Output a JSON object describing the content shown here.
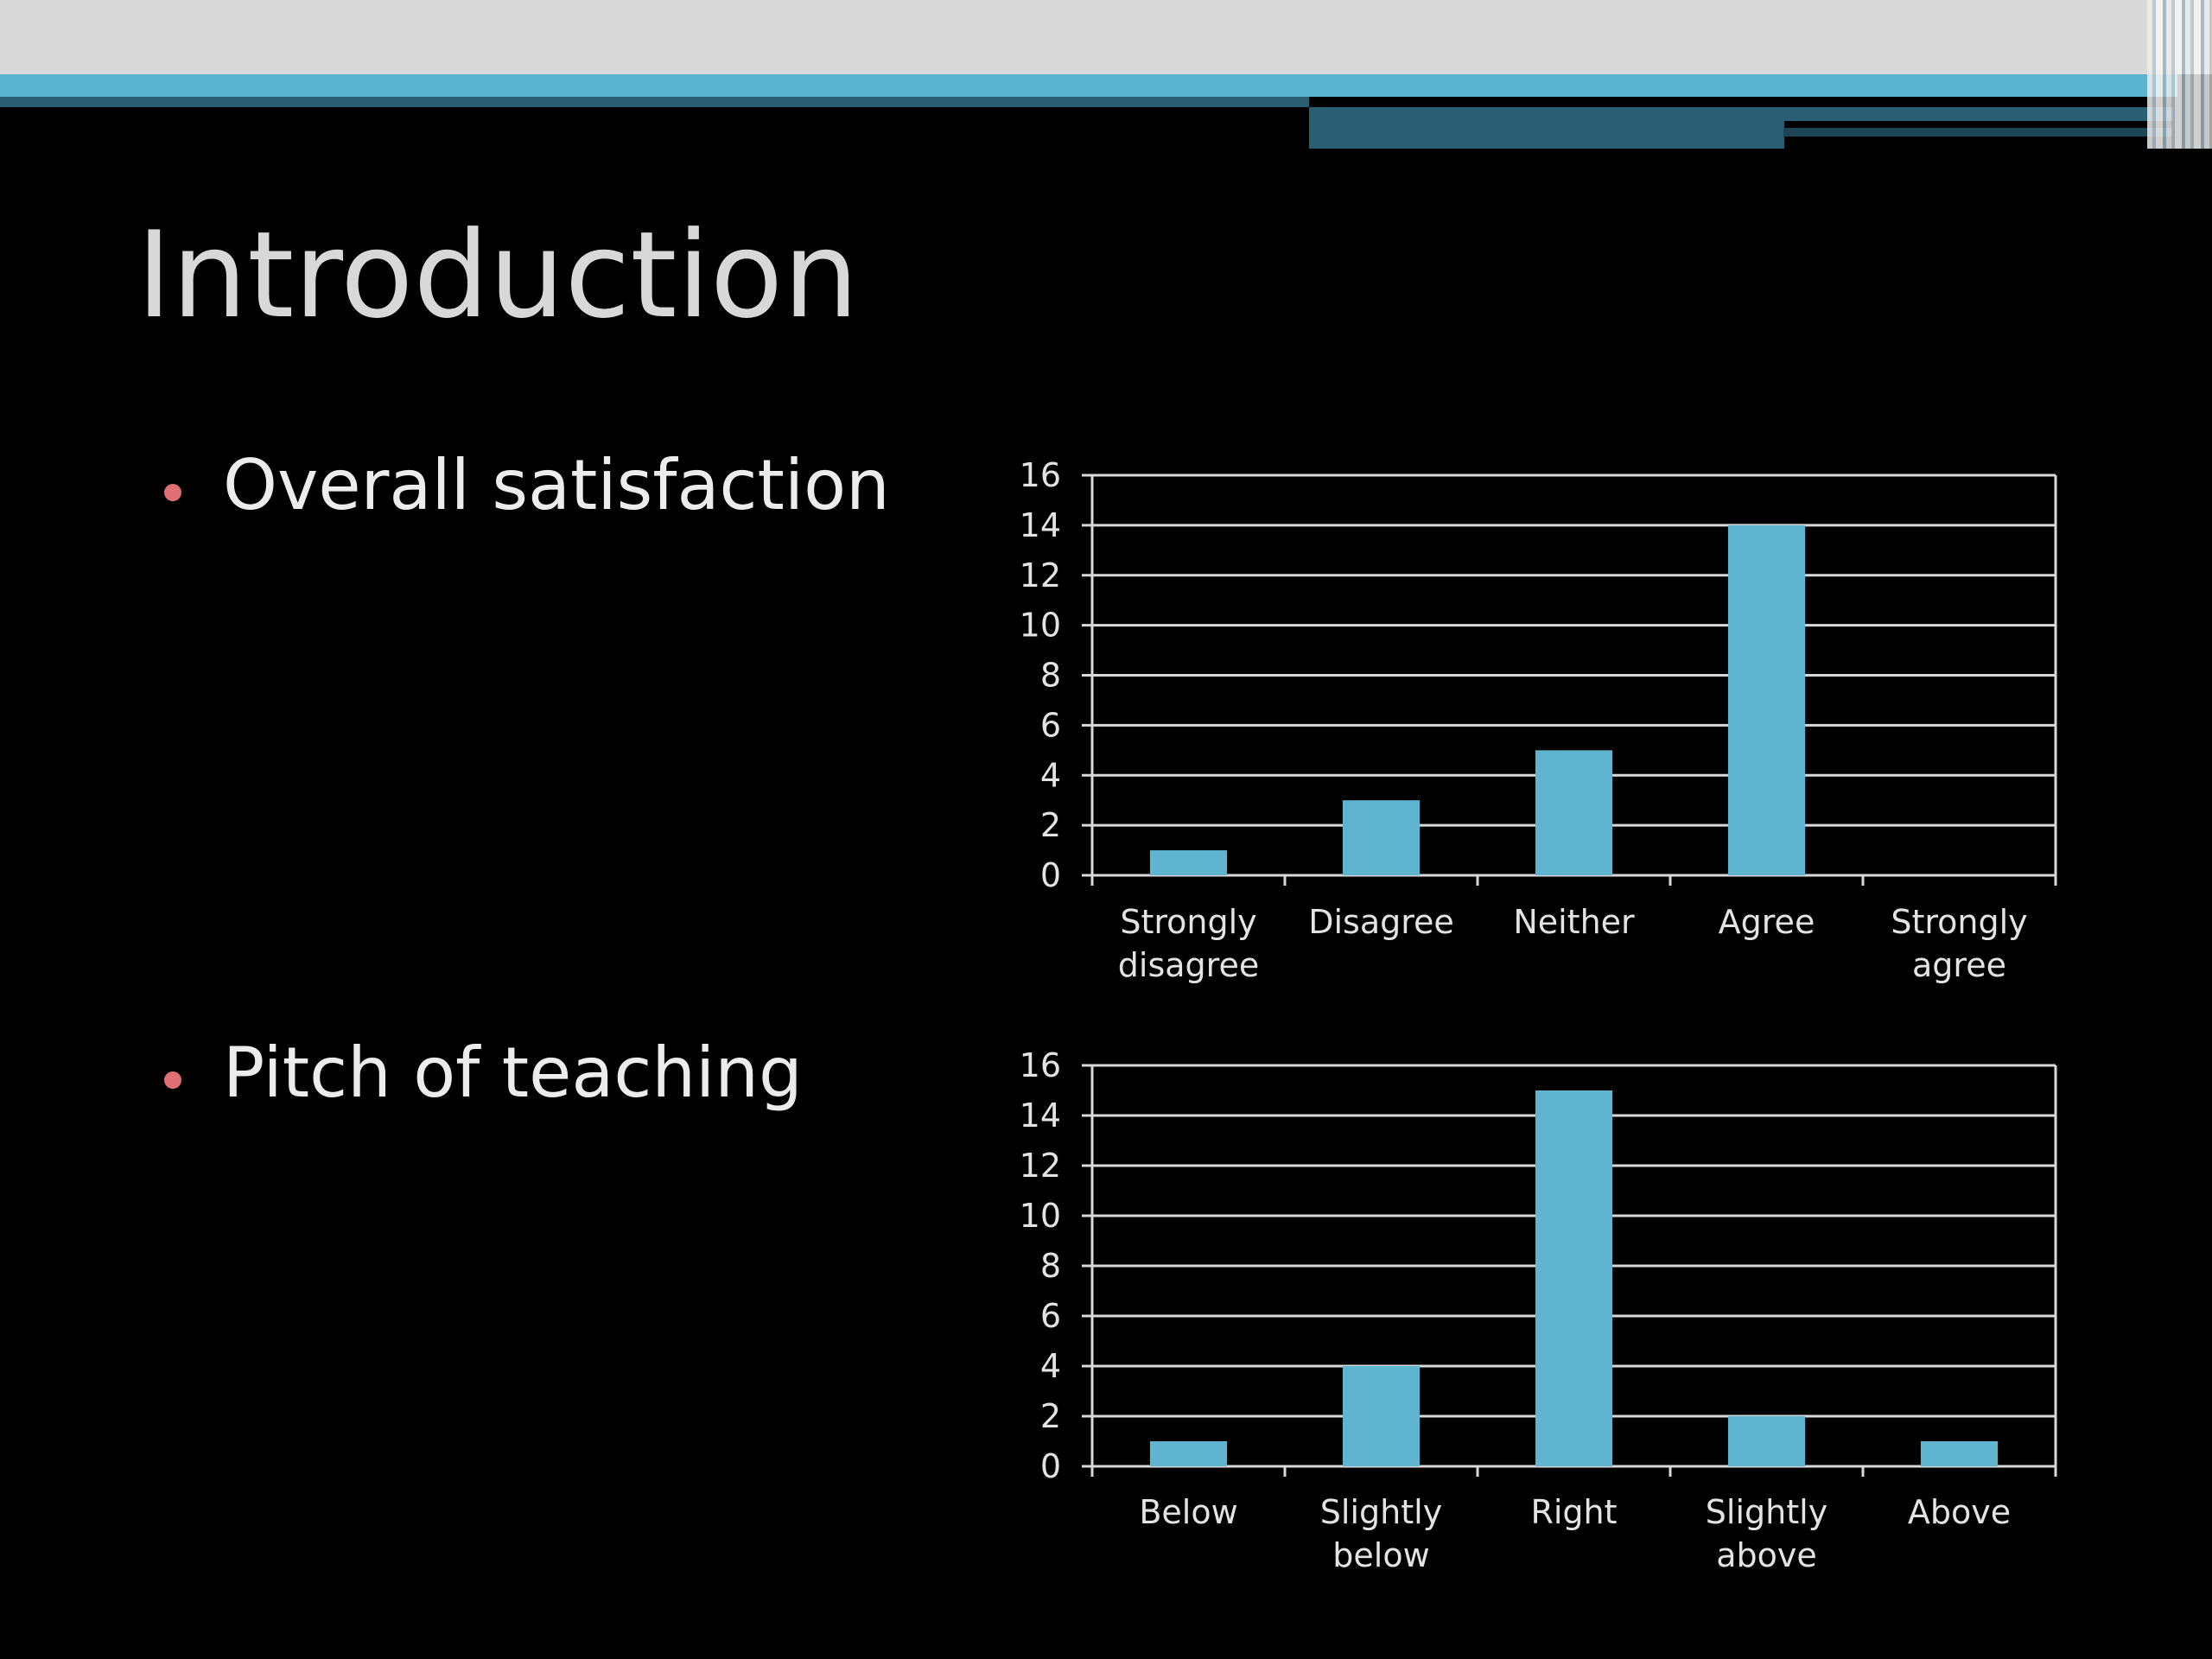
{
  "slide": {
    "title": "Introduction",
    "bullets": [
      "Overall satisfaction",
      "Pitch of teaching"
    ]
  },
  "colors": {
    "background": "#000000",
    "bar": "#5fb5d0",
    "bullet_dot": "#e06e75",
    "title_text": "#d8d8d8",
    "body_text": "#ececec",
    "gridline": "#d9d9d9"
  },
  "chart_data": [
    {
      "type": "bar",
      "categories": [
        "Strongly disagree",
        "Disagree",
        "Neither",
        "Agree",
        "Strongly agree"
      ],
      "values": [
        1,
        3,
        5,
        14,
        0
      ],
      "title": "",
      "xlabel": "",
      "ylabel": "",
      "ylim": [
        0,
        16
      ],
      "yticks": [
        "0",
        "2",
        "4",
        "6",
        "8",
        "10",
        "12",
        "14",
        "16"
      ],
      "grid": true,
      "legend": "none"
    },
    {
      "type": "bar",
      "categories": [
        "Below",
        "Slightly below",
        "Right",
        "Slightly above",
        "Above"
      ],
      "values": [
        1,
        4,
        15,
        2,
        1
      ],
      "title": "",
      "xlabel": "",
      "ylabel": "",
      "ylim": [
        0,
        16
      ],
      "yticks": [
        "0",
        "2",
        "4",
        "6",
        "8",
        "10",
        "12",
        "14",
        "16"
      ],
      "grid": true,
      "legend": "none"
    }
  ]
}
